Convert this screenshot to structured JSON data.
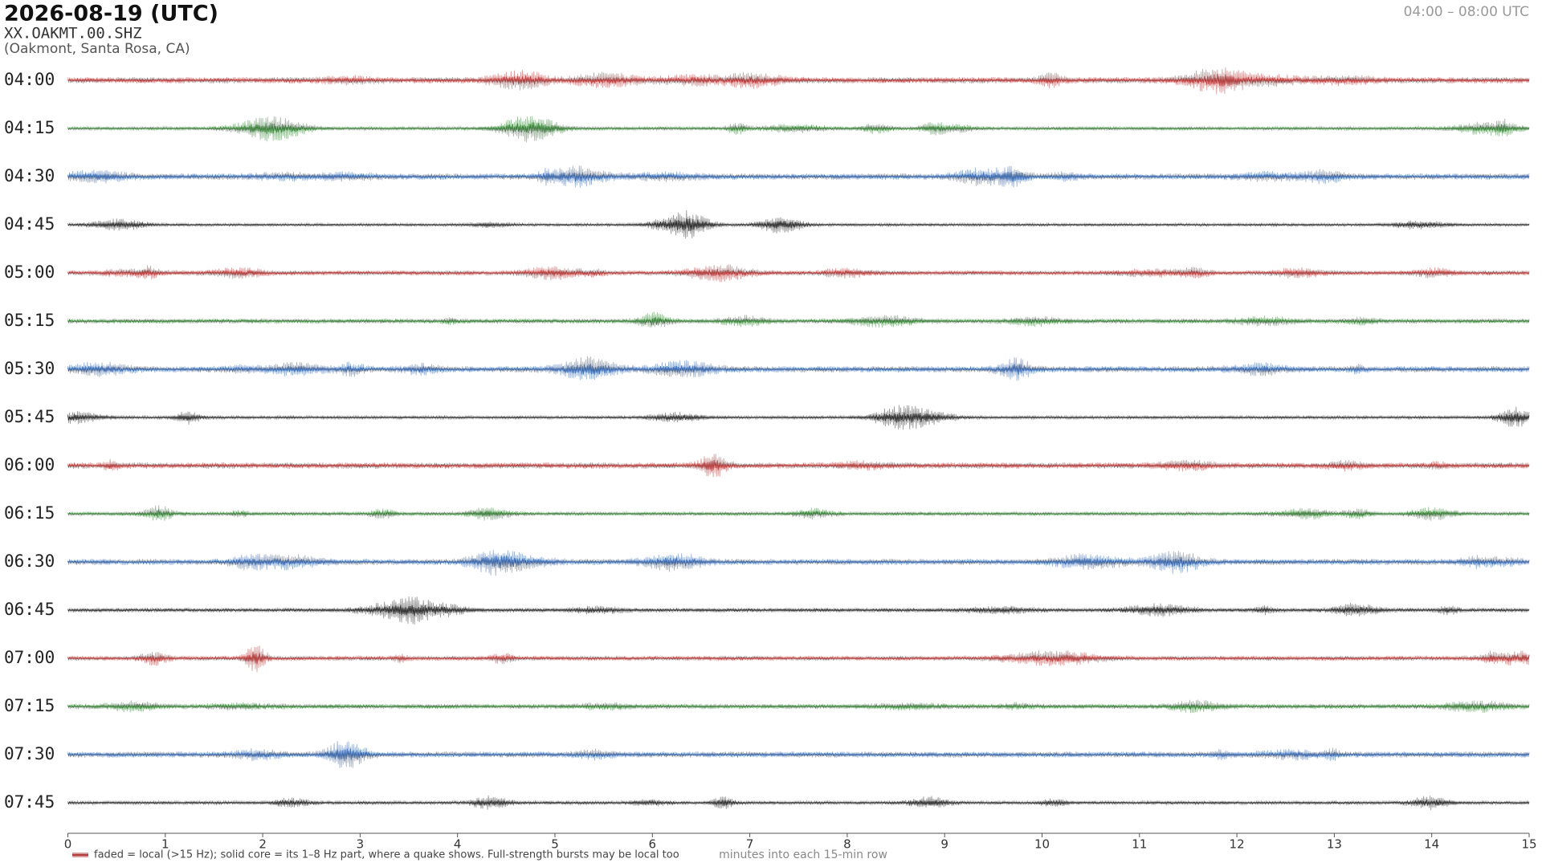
{
  "chart_data": {
    "type": "helicorder",
    "title": "2026-08-19  (UTC)",
    "station": "XX.OAKMT.00.SHZ",
    "location": "(Oakmont, Santa Rosa, CA)",
    "time_range": "04:00 – 08:00 UTC",
    "rows": [
      "04:00",
      "04:15",
      "04:30",
      "04:45",
      "05:00",
      "05:15",
      "05:30",
      "05:45",
      "06:00",
      "06:15",
      "06:30",
      "06:45",
      "07:00",
      "07:15",
      "07:30",
      "07:45"
    ],
    "row_colors": [
      "#b03a3a",
      "#3a7d3a",
      "#3a66a8",
      "#2b2b2b"
    ],
    "xlabel": "minutes into each 15-min row",
    "xlim": [
      0,
      15
    ],
    "xticks": [
      0,
      1,
      2,
      3,
      4,
      5,
      6,
      7,
      8,
      9,
      10,
      11,
      12,
      13,
      14,
      15
    ],
    "legend": "faded = local (>15 Hz); solid core = its 1–8 Hz part, where a quake shows. Full-strength bursts may be local too"
  }
}
